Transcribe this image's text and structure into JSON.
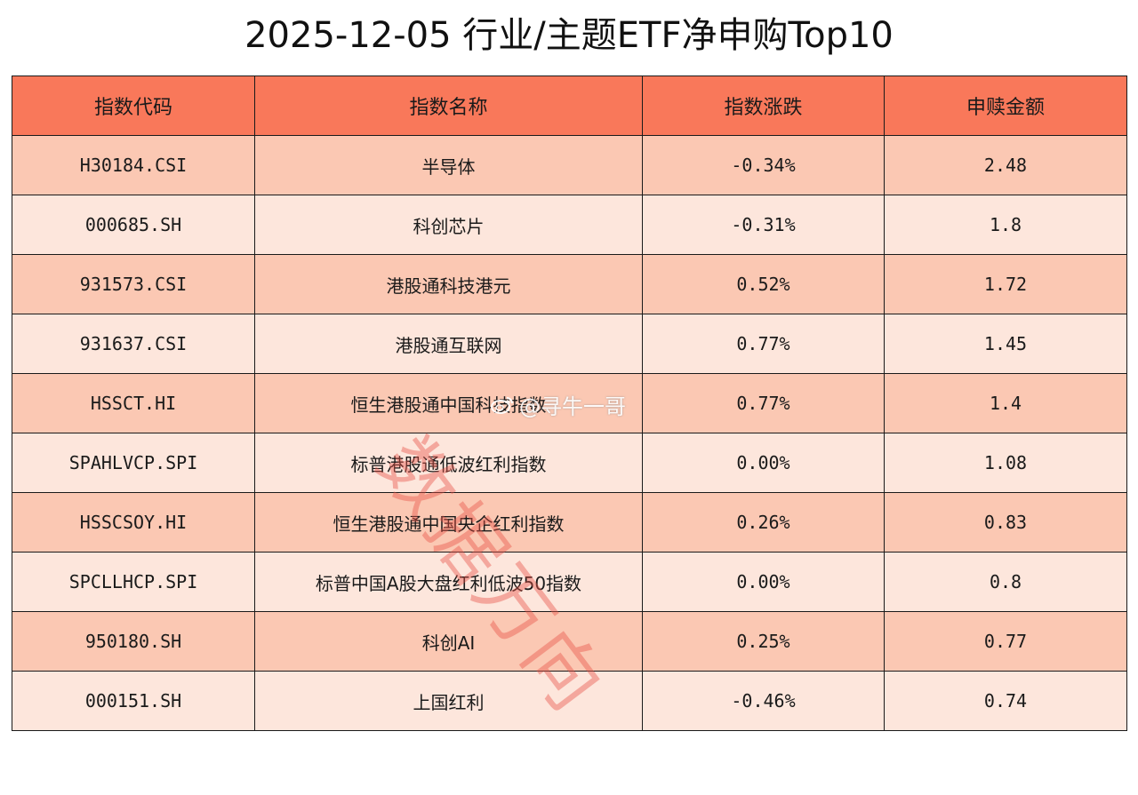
{
  "title": "2025-12-05 行业/主题ETF净申购Top10",
  "colors": {
    "header_bg": "#f9785a",
    "odd_row_bg": "#fbc8b3",
    "even_row_bg": "#fde6dc",
    "watermark": "#e65046"
  },
  "table": {
    "headers": [
      "指数代码",
      "指数名称",
      "指数涨跌",
      "申赎金额"
    ],
    "rows": [
      {
        "code": "H30184.CSI",
        "name": "半导体",
        "change": "-0.34%",
        "amount": "2.48"
      },
      {
        "code": "000685.SH",
        "name": "科创芯片",
        "change": "-0.31%",
        "amount": "1.8"
      },
      {
        "code": "931573.CSI",
        "name": "港股通科技港元",
        "change": "0.52%",
        "amount": "1.72"
      },
      {
        "code": "931637.CSI",
        "name": "港股通互联网",
        "change": "0.77%",
        "amount": "1.45"
      },
      {
        "code": "HSSCT.HI",
        "name": "恒生港股通中国科技指数",
        "change": "0.77%",
        "amount": "1.4"
      },
      {
        "code": "SPAHLVCP.SPI",
        "name": "标普港股通低波红利指数",
        "change": "0.00%",
        "amount": "1.08"
      },
      {
        "code": "HSSCSOY.HI",
        "name": "恒生港股通中国央企红利指数",
        "change": "0.26%",
        "amount": "0.83"
      },
      {
        "code": "SPCLLHCP.SPI",
        "name": "标普中国A股大盘红利低波50指数",
        "change": "0.00%",
        "amount": "0.8"
      },
      {
        "code": "950180.SH",
        "name": "科创AI",
        "change": "0.25%",
        "amount": "0.77"
      },
      {
        "code": "000151.SH",
        "name": "上国红利",
        "change": "-0.46%",
        "amount": "0.74"
      }
    ]
  },
  "watermark_text": "数据万向",
  "weibo_handle": "@寻牛一哥",
  "weibo_icon": "weibo-logo-icon"
}
